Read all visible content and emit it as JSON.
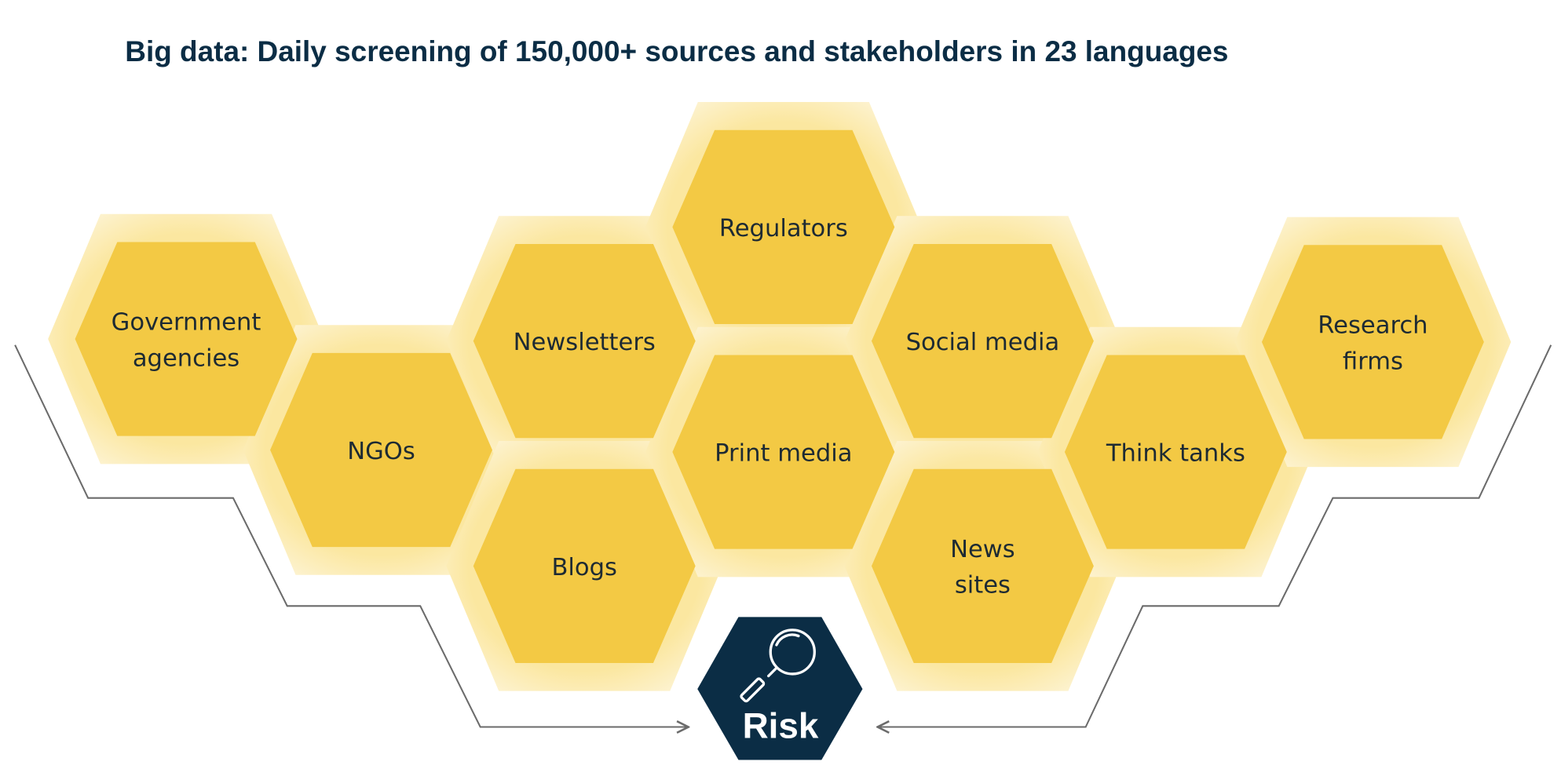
{
  "title": "Big data: Daily screening of 150,000+ sources and stakeholders in 23 languages",
  "colors": {
    "hex_fill": "#f3c944",
    "hex_glow": "#fbeab0",
    "risk_fill": "#0b2d45",
    "title": "#0b2d45",
    "arrow": "#6b6b6b"
  },
  "sources": [
    {
      "id": "government-agencies",
      "lines": [
        "Government",
        "agencies"
      ]
    },
    {
      "id": "ngos",
      "lines": [
        "NGOs"
      ]
    },
    {
      "id": "newsletters",
      "lines": [
        "Newsletters"
      ]
    },
    {
      "id": "blogs",
      "lines": [
        "Blogs"
      ]
    },
    {
      "id": "regulators",
      "lines": [
        "Regulators"
      ]
    },
    {
      "id": "print-media",
      "lines": [
        "Print media"
      ]
    },
    {
      "id": "social-media",
      "lines": [
        "Social media"
      ]
    },
    {
      "id": "news-sites",
      "lines": [
        "News",
        "sites"
      ]
    },
    {
      "id": "think-tanks",
      "lines": [
        "Think tanks"
      ]
    },
    {
      "id": "research-firms",
      "lines": [
        "Research",
        "firms"
      ]
    }
  ],
  "target": {
    "label": "Risk",
    "icon": "magnifying-glass-icon"
  }
}
